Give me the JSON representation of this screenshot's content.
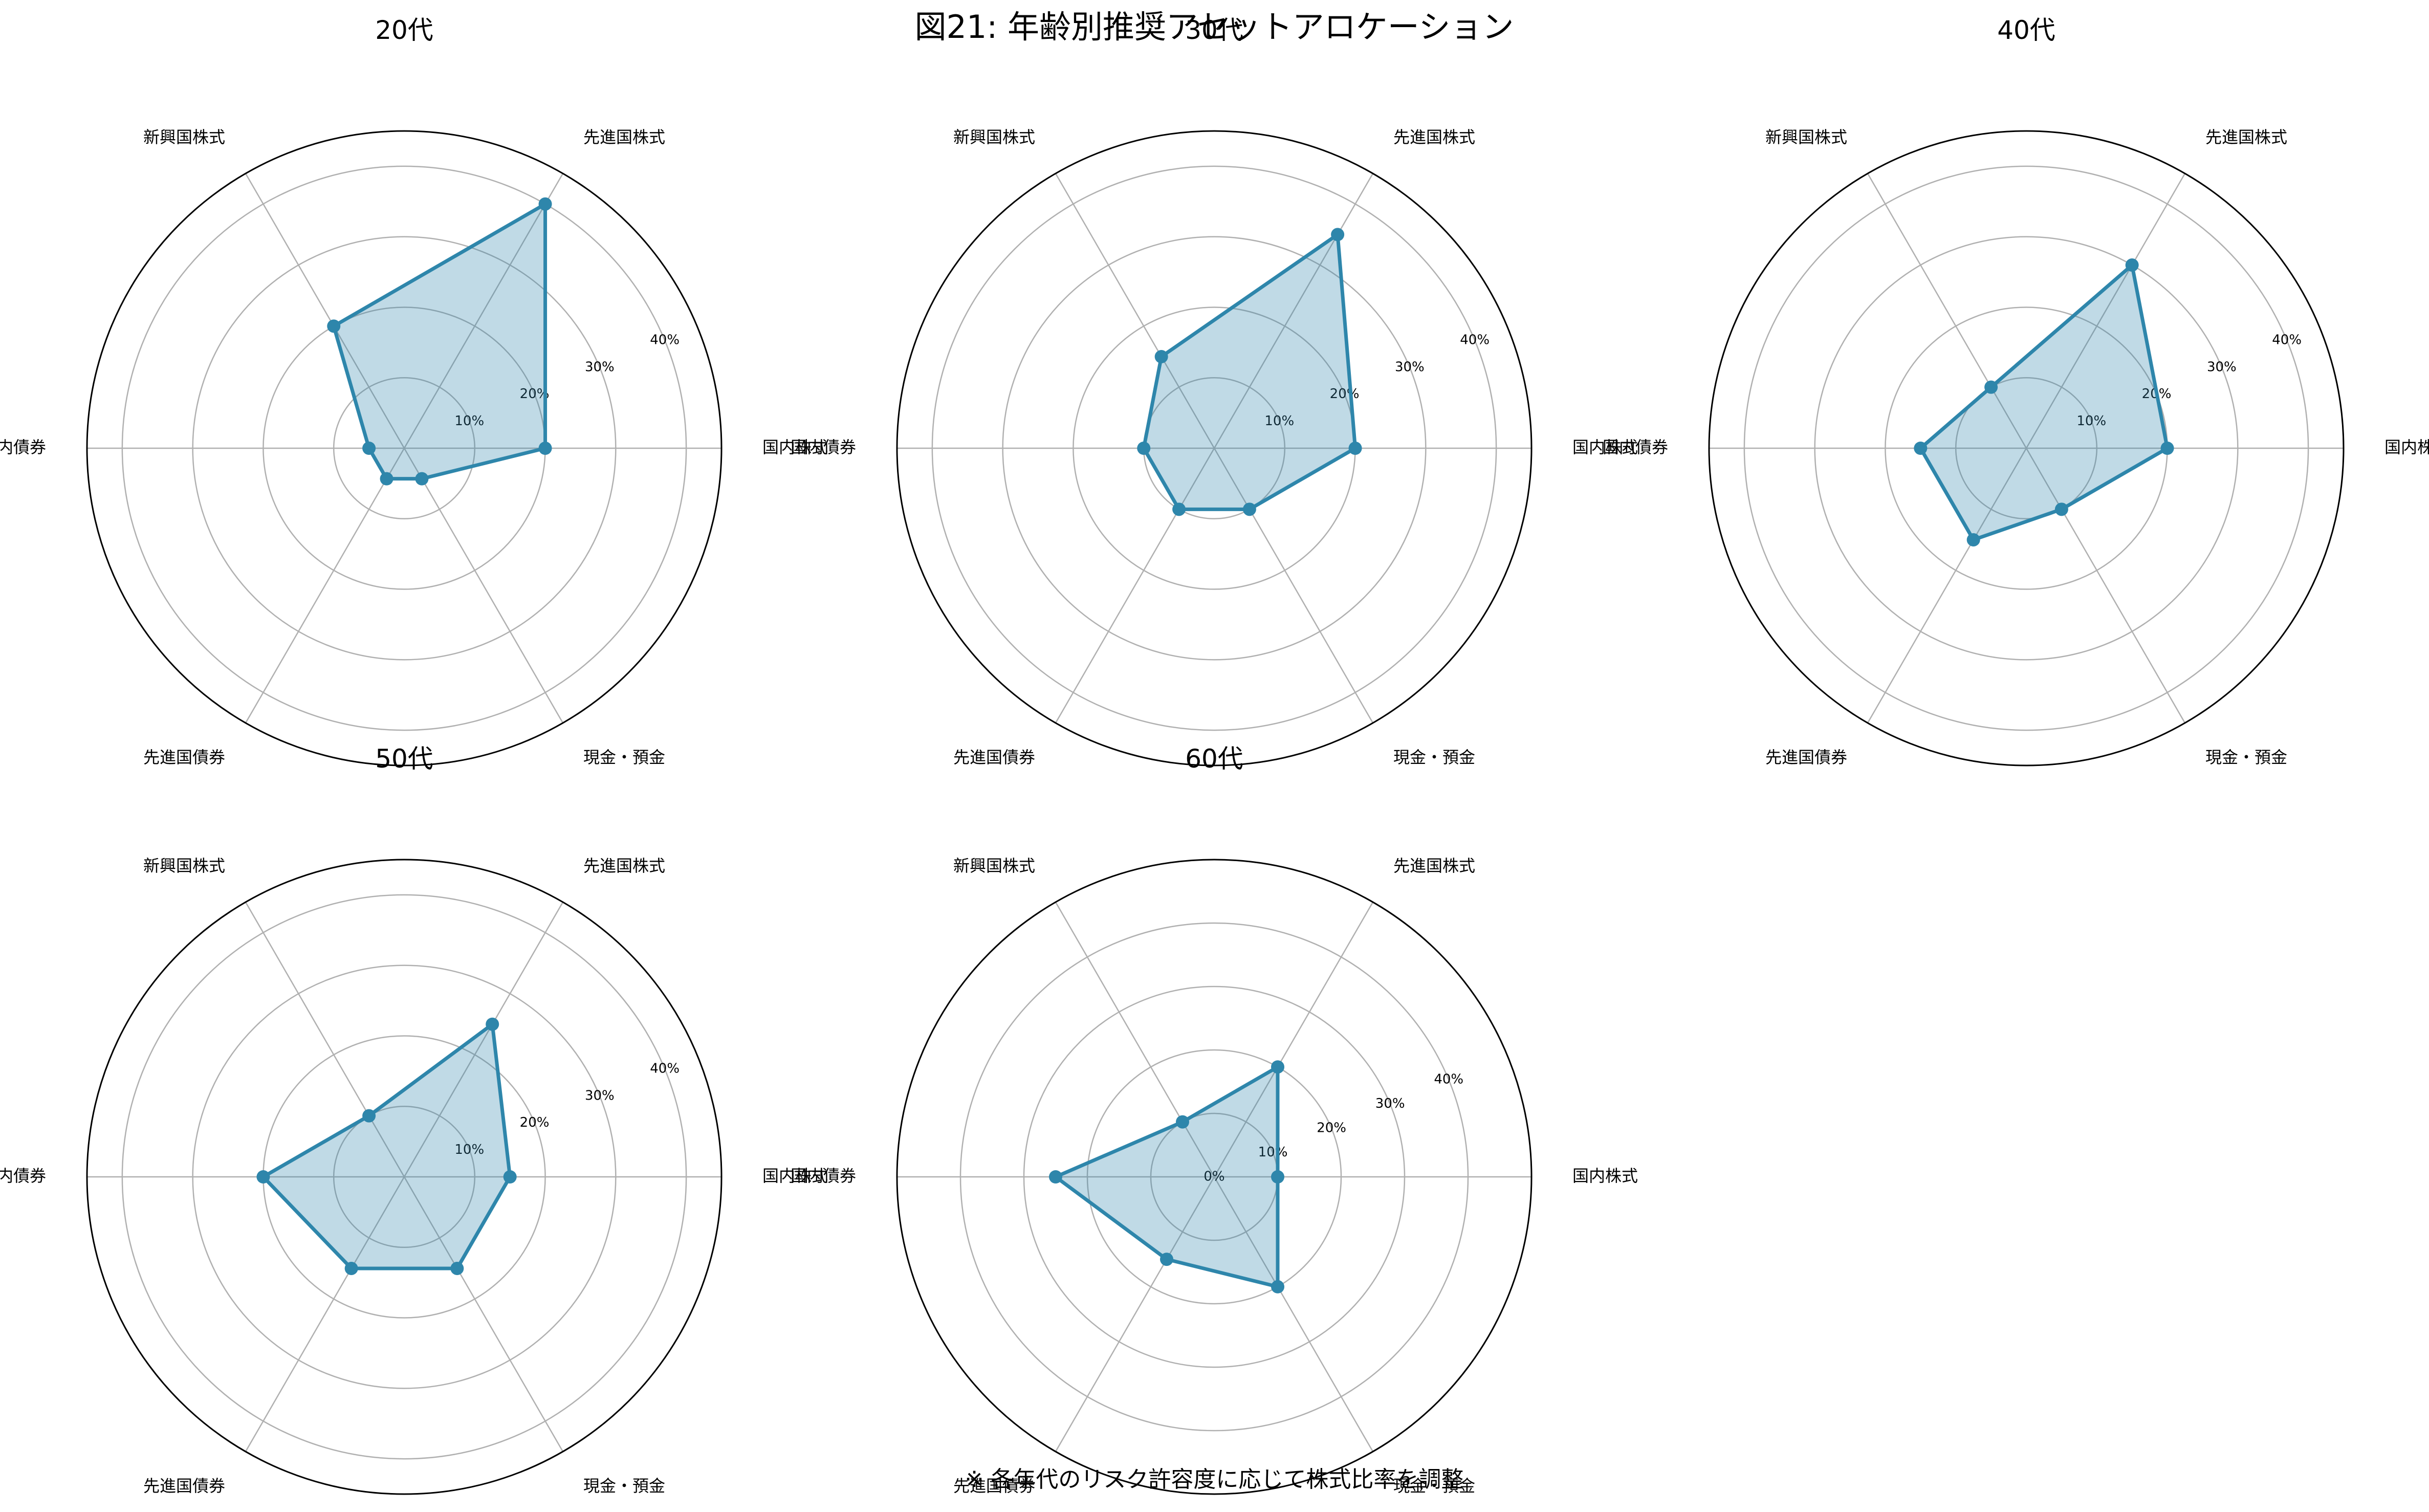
{
  "title": "図21: 年齢別推奨アセットアロケーション",
  "footnote": "※ 各年代のリスク許容度に応じて株式比率を調整",
  "chart_data": [
    {
      "type": "radar",
      "title": "20代",
      "categories": [
        "国内株式",
        "先進国株式",
        "新興国株式",
        "国内債券",
        "先進国債券",
        "現金・預金"
      ],
      "values": [
        20,
        40,
        20,
        5,
        5,
        5
      ],
      "rlim": [
        0,
        45
      ],
      "rticks": [
        10,
        20,
        30,
        40
      ],
      "rtick_labels": [
        "10%",
        "20%",
        "30%",
        "40%"
      ],
      "grid": true,
      "line_color": "#2e86ab",
      "fill_color": "#2e86ab"
    },
    {
      "type": "radar",
      "title": "30代",
      "categories": [
        "国内株式",
        "先進国株式",
        "新興国株式",
        "国内債券",
        "先進国債券",
        "現金・預金"
      ],
      "values": [
        20,
        35,
        15,
        10,
        10,
        10
      ],
      "rlim": [
        0,
        45
      ],
      "rticks": [
        10,
        20,
        30,
        40
      ],
      "rtick_labels": [
        "10%",
        "20%",
        "30%",
        "40%"
      ],
      "grid": true,
      "line_color": "#2e86ab",
      "fill_color": "#2e86ab"
    },
    {
      "type": "radar",
      "title": "40代",
      "categories": [
        "国内株式",
        "先進国株式",
        "新興国株式",
        "国内債券",
        "先進国債券",
        "現金・預金"
      ],
      "values": [
        20,
        30,
        10,
        15,
        15,
        10
      ],
      "rlim": [
        0,
        45
      ],
      "rticks": [
        10,
        20,
        30,
        40
      ],
      "rtick_labels": [
        "10%",
        "20%",
        "30%",
        "40%"
      ],
      "grid": true,
      "line_color": "#2e86ab",
      "fill_color": "#2e86ab"
    },
    {
      "type": "radar",
      "title": "50代",
      "categories": [
        "国内株式",
        "先進国株式",
        "新興国株式",
        "国内債券",
        "先進国債券",
        "現金・預金"
      ],
      "values": [
        15,
        25,
        10,
        20,
        15,
        15
      ],
      "rlim": [
        0,
        45
      ],
      "rticks": [
        10,
        20,
        30,
        40
      ],
      "rtick_labels": [
        "10%",
        "20%",
        "30%",
        "40%"
      ],
      "grid": true,
      "line_color": "#2e86ab",
      "fill_color": "#2e86ab"
    },
    {
      "type": "radar",
      "title": "60代",
      "categories": [
        "国内株式",
        "先進国株式",
        "新興国株式",
        "国内債券",
        "先進国債券",
        "現金・預金"
      ],
      "values": [
        10,
        20,
        10,
        25,
        15,
        20
      ],
      "rlim": [
        0,
        50
      ],
      "rticks": [
        0,
        10,
        20,
        30,
        40
      ],
      "rtick_labels": [
        "0%",
        "10%",
        "20%",
        "30%",
        "40%"
      ],
      "grid": true,
      "line_color": "#2e86ab",
      "fill_color": "#2e86ab"
    }
  ]
}
